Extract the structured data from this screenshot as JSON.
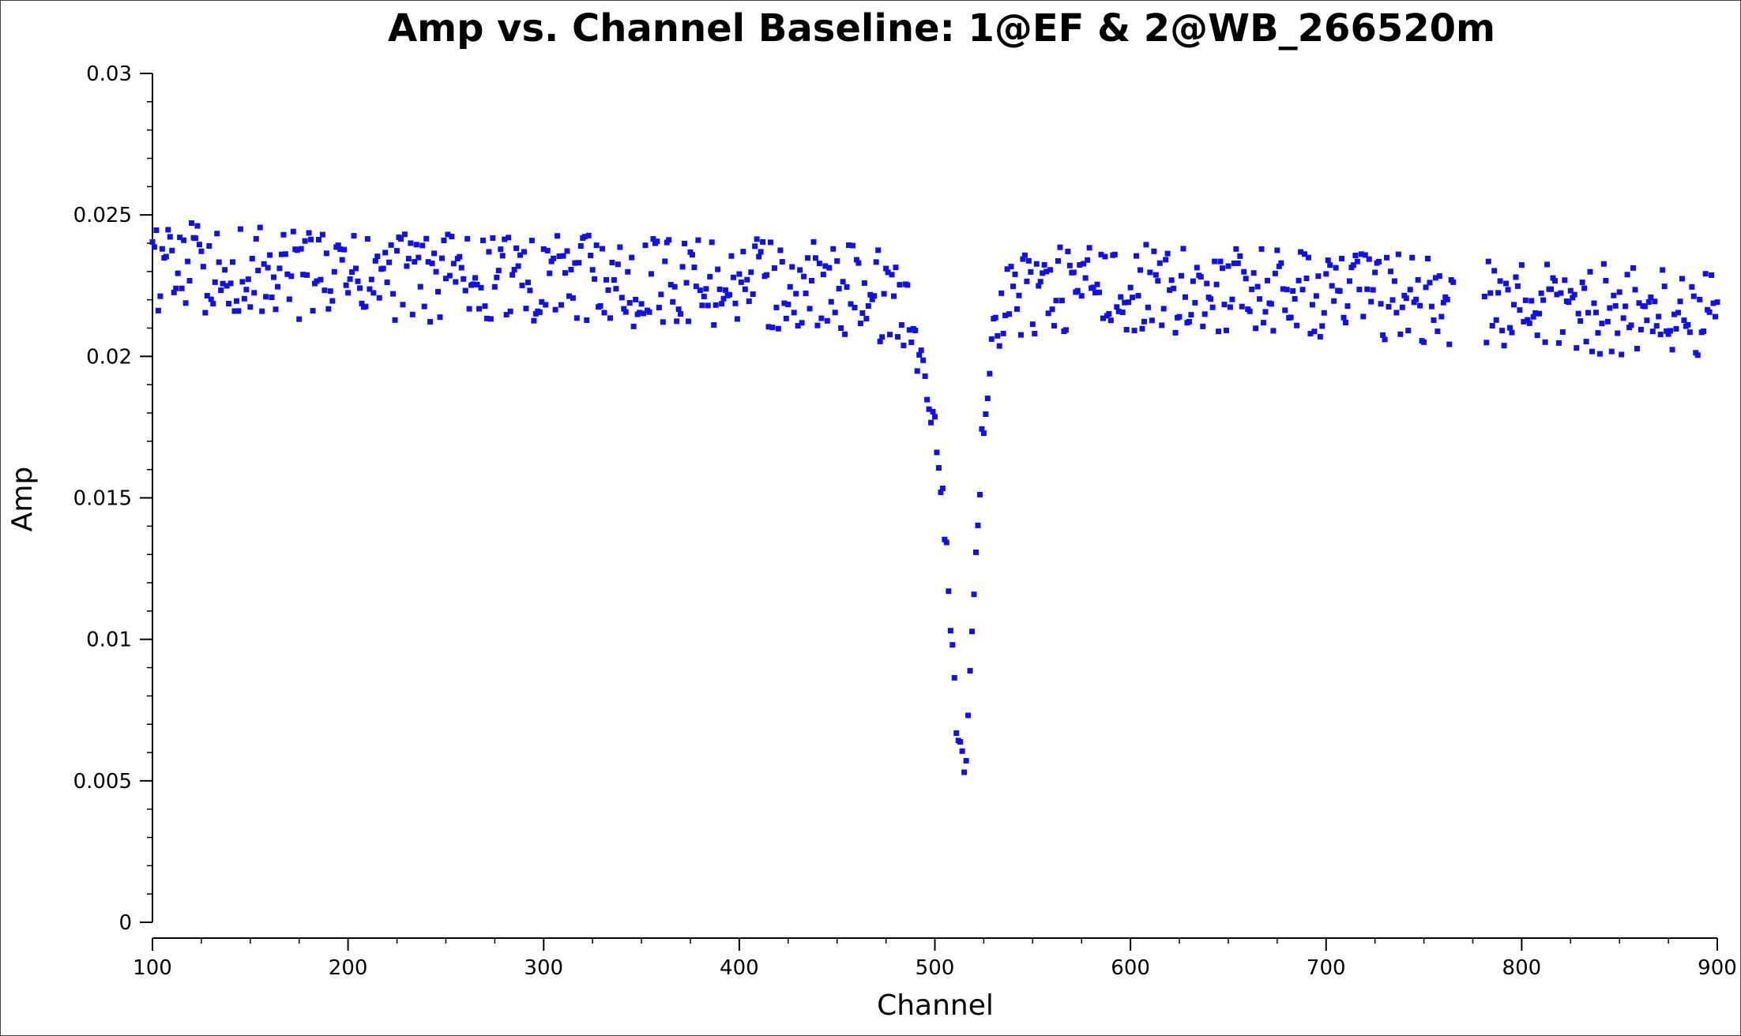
{
  "chart_data": {
    "type": "scatter",
    "title": "Amp vs. Channel Baseline: 1@EF & 2@WB_266520m",
    "xlabel": "Channel",
    "ylabel": "Amp",
    "xlim": [
      100,
      900
    ],
    "ylim": [
      0,
      0.03
    ],
    "x_ticks": [
      100,
      200,
      300,
      400,
      500,
      600,
      700,
      800,
      900
    ],
    "y_ticks": [
      0,
      0.005,
      0.01,
      0.015,
      0.02,
      0.025,
      0.03
    ],
    "x_tick_labels": [
      "100",
      "200",
      "300",
      "400",
      "500",
      "600",
      "700",
      "800",
      "900"
    ],
    "y_tick_labels": [
      "0",
      "0.005",
      "0.01",
      "0.015",
      "0.02",
      "0.025",
      "0.03"
    ],
    "grid": false,
    "legend": "none",
    "marker_color": "#1010ee",
    "series": [
      {
        "profile": [
          [
            100,
            0.0232
          ],
          [
            200,
            0.0228
          ],
          [
            300,
            0.0227
          ],
          [
            400,
            0.0226
          ],
          [
            450,
            0.0224
          ],
          [
            470,
            0.0222
          ],
          [
            480,
            0.0218
          ],
          [
            490,
            0.0205
          ],
          [
            495,
            0.019
          ],
          [
            500,
            0.0175
          ],
          [
            505,
            0.014
          ],
          [
            508,
            0.011
          ],
          [
            511,
            0.0068
          ],
          [
            514,
            0.0056
          ],
          [
            516,
            0.006
          ],
          [
            518,
            0.009
          ],
          [
            521,
            0.013
          ],
          [
            525,
            0.018
          ],
          [
            530,
            0.0205
          ],
          [
            535,
            0.0218
          ],
          [
            545,
            0.0223
          ],
          [
            600,
            0.0224
          ],
          [
            700,
            0.0222
          ],
          [
            800,
            0.0218
          ],
          [
            900,
            0.0215
          ]
        ],
        "spread": 0.0016,
        "gaps": [
          [
            766,
            780
          ]
        ]
      }
    ]
  }
}
